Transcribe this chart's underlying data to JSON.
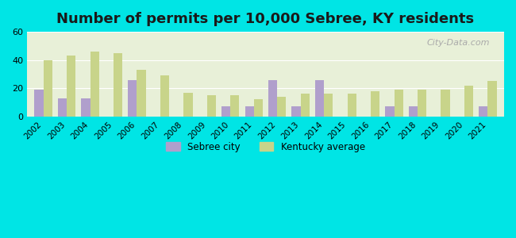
{
  "title": "Number of permits per 10,000 Sebree, KY residents",
  "years": [
    2002,
    2003,
    2004,
    2005,
    2006,
    2007,
    2008,
    2009,
    2010,
    2011,
    2012,
    2013,
    2014,
    2015,
    2016,
    2017,
    2018,
    2019,
    2020,
    2021
  ],
  "sebree": [
    19,
    13,
    13,
    0,
    26,
    0,
    0,
    0,
    7,
    7,
    26,
    7,
    26,
    0,
    0,
    7,
    7,
    0,
    0,
    7
  ],
  "kentucky": [
    40,
    43,
    46,
    45,
    33,
    29,
    17,
    15,
    15,
    12,
    14,
    16,
    16,
    16,
    18,
    19,
    19,
    19,
    22,
    25
  ],
  "sebree_color": "#b09fcc",
  "kentucky_color": "#c8d48a",
  "background_outer": "#00e5e5",
  "background_inner": "#e8f0d8",
  "ylim": [
    0,
    60
  ],
  "yticks": [
    0,
    20,
    40,
    60
  ],
  "legend_sebree": "Sebree city",
  "legend_kentucky": "Kentucky average",
  "bar_width": 0.38,
  "title_fontsize": 13
}
